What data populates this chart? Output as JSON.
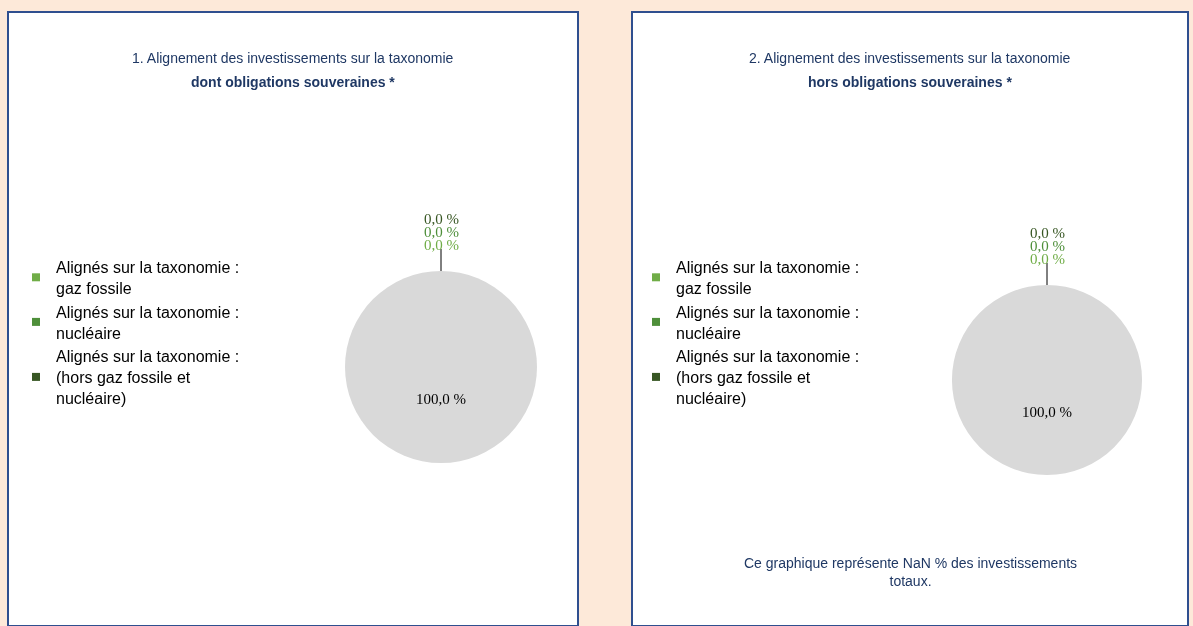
{
  "chart_data": [
    {
      "type": "pie",
      "title": "1. Alignement des investissements sur la taxonomie",
      "subtitle": "dont obligations souveraines *",
      "categories": [
        "Alignés sur la taxonomie : gaz fossile",
        "Alignés sur la taxonomie : nucléaire",
        "Alignés sur la taxonomie : (hors gaz fossile et nucléaire)",
        null
      ],
      "values": [
        0,
        0,
        0,
        100
      ],
      "colors": [
        "#70ad47",
        "#4e8f3a",
        "#375623",
        "#d9d9d9"
      ],
      "value_labels": [
        "0,0 %",
        "0,0 %",
        "0,0 %",
        "100,0 %"
      ],
      "legend": "left"
    },
    {
      "type": "pie",
      "title": "2. Alignement des investissements sur la taxonomie",
      "subtitle": "hors obligations souveraines *",
      "categories": [
        "Alignés sur la taxonomie : gaz fossile",
        "Alignés sur la taxonomie : nucléaire",
        "Alignés sur la taxonomie : (hors gaz fossile et nucléaire)",
        null
      ],
      "values": [
        0,
        0,
        0,
        100
      ],
      "colors": [
        "#70ad47",
        "#4e8f3a",
        "#375623",
        "#d9d9d9"
      ],
      "value_labels": [
        "0,0 %",
        "0,0 %",
        "0,0 %",
        "100,0 %"
      ],
      "legend": "left",
      "annotations": [
        "Ce graphique représente NaN % des investissements totaux."
      ]
    }
  ]
}
